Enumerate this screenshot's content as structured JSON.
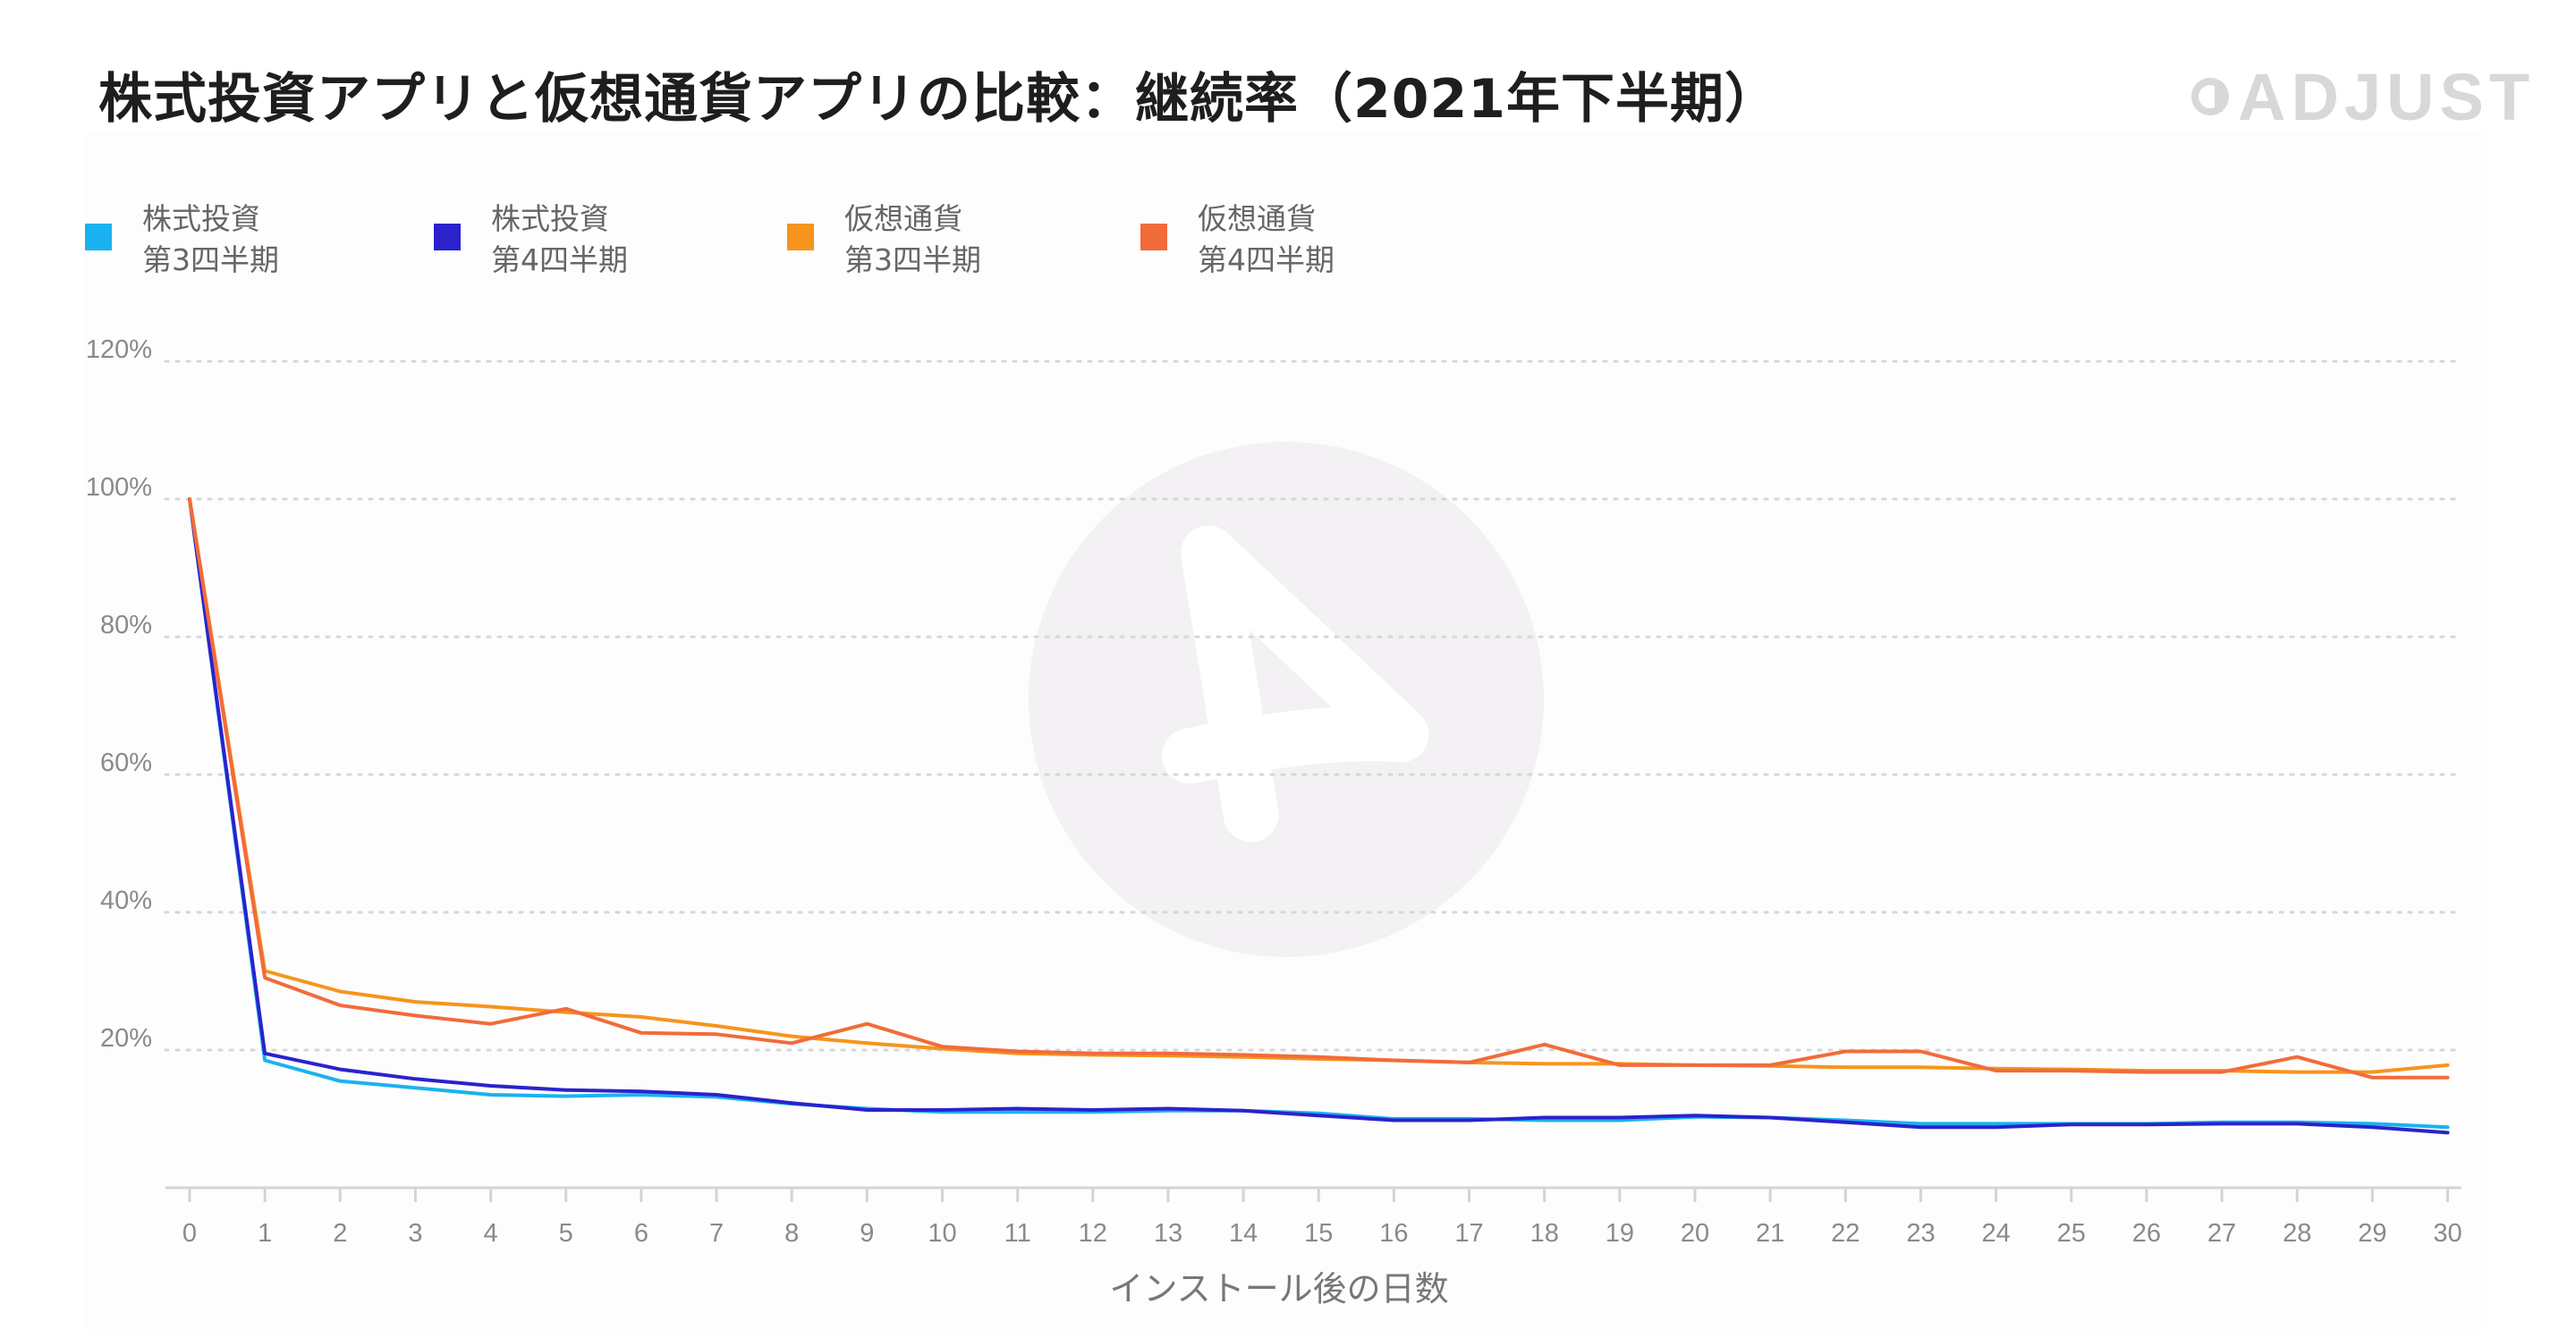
{
  "chart_data": {
    "type": "line",
    "title": "株式投資アプリと仮想通貨アプリの比較：継続率（2021年下半期）",
    "xlabel": "インストール後の日数",
    "ylabel": "",
    "x": [
      0,
      1,
      2,
      3,
      4,
      5,
      6,
      7,
      8,
      9,
      10,
      11,
      12,
      13,
      14,
      15,
      16,
      17,
      18,
      19,
      20,
      21,
      22,
      23,
      24,
      25,
      26,
      27,
      28,
      29,
      30
    ],
    "xlim": [
      0,
      30
    ],
    "ylim": [
      0,
      120
    ],
    "yticks": [
      20,
      40,
      60,
      80,
      100,
      120
    ],
    "ytick_labels": [
      "20%",
      "40%",
      "60%",
      "80%",
      "100%",
      "120%"
    ],
    "grid": true,
    "legend_position": "top-left",
    "series": [
      {
        "name": "株式投資 第3四半期",
        "label_lines": [
          "株式投資",
          "第3四半期"
        ],
        "color": "#1ab2f0",
        "values": [
          100,
          18.5,
          15.5,
          14.5,
          13.5,
          13.3,
          13.5,
          13.2,
          12.2,
          11.5,
          11.0,
          11.0,
          11.0,
          11.2,
          11.2,
          10.8,
          10.0,
          10.0,
          9.8,
          9.8,
          10.3,
          10.2,
          9.8,
          9.3,
          9.3,
          9.3,
          9.3,
          9.5,
          9.5,
          9.3,
          8.8
        ]
      },
      {
        "name": "株式投資 第4四半期",
        "label_lines": [
          "株式投資",
          "第4四半期"
        ],
        "color": "#2b22cc",
        "values": [
          100,
          19.5,
          17.2,
          15.8,
          14.8,
          14.2,
          14.0,
          13.5,
          12.3,
          11.3,
          11.3,
          11.5,
          11.3,
          11.5,
          11.2,
          10.5,
          9.8,
          9.8,
          10.2,
          10.2,
          10.5,
          10.2,
          9.5,
          8.8,
          8.8,
          9.2,
          9.2,
          9.3,
          9.3,
          8.8,
          8.0
        ]
      },
      {
        "name": "仮想通貨 第3四半期",
        "label_lines": [
          "仮想通貨",
          "第3四半期"
        ],
        "color": "#f7941d",
        "values": [
          100,
          31.5,
          28.5,
          27.0,
          26.3,
          25.5,
          24.8,
          23.5,
          22.0,
          21.0,
          20.2,
          19.5,
          19.3,
          19.2,
          19.0,
          18.7,
          18.5,
          18.2,
          18.0,
          18.0,
          17.8,
          17.7,
          17.5,
          17.5,
          17.3,
          17.2,
          17.0,
          17.0,
          16.8,
          16.8,
          17.8
        ]
      },
      {
        "name": "仮想通貨 第4四半期",
        "label_lines": [
          "仮想通貨",
          "第4四半期"
        ],
        "color": "#f26b3a",
        "values": [
          100,
          30.5,
          26.5,
          25.0,
          23.8,
          26.0,
          22.5,
          22.3,
          21.0,
          23.8,
          20.5,
          19.8,
          19.5,
          19.5,
          19.3,
          19.0,
          18.5,
          18.2,
          20.8,
          17.8,
          17.8,
          17.8,
          19.8,
          19.8,
          17.0,
          17.0,
          16.8,
          16.8,
          19.0,
          16.0,
          16.0
        ]
      }
    ]
  },
  "brand": {
    "logo_text": "ADJUST"
  }
}
